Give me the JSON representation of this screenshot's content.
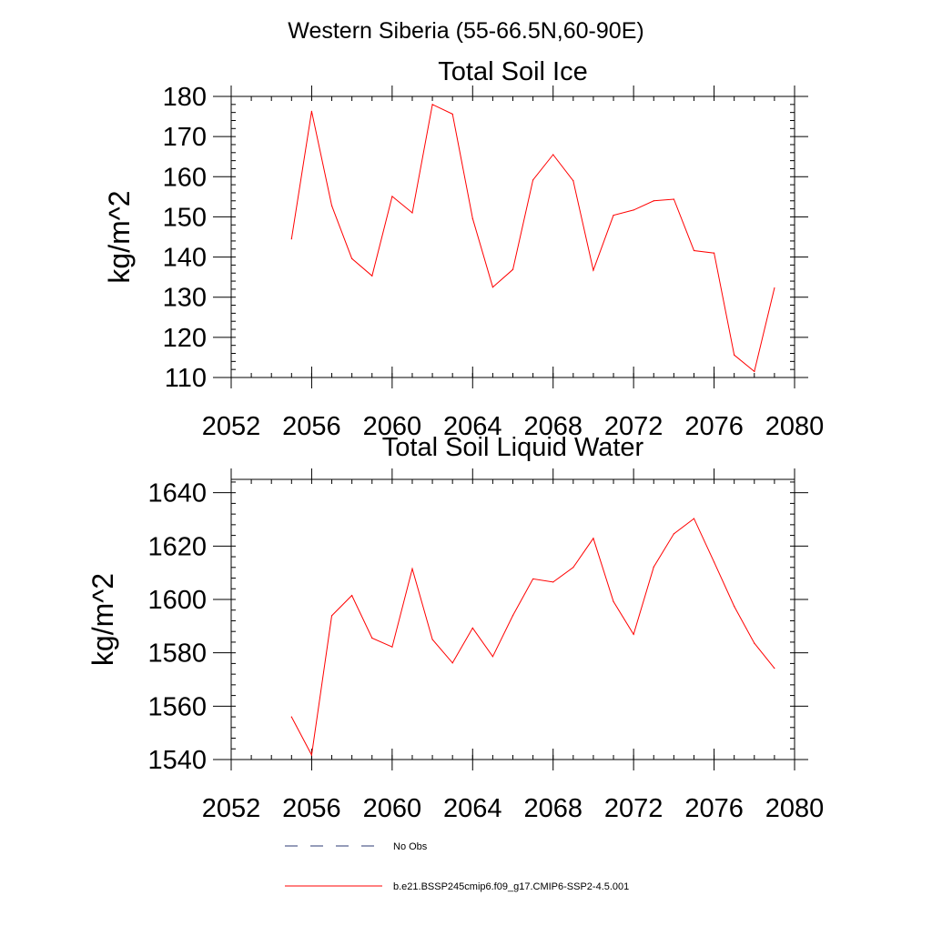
{
  "page_title": "Western Siberia (55-66.5N,60-90E)",
  "legend": {
    "entries": [
      {
        "label": "No Obs",
        "style": "dashed",
        "color": "#2b3a73"
      },
      {
        "label": "b.e21.BSSP245cmip6.f09_g17.CMIP6-SSP2-4.5.001",
        "style": "solid",
        "color": "#ff0000"
      }
    ]
  },
  "chart_data": [
    {
      "type": "line",
      "title": "Total Soil Ice",
      "xlabel": "",
      "ylabel": "kg/m^2",
      "xlim": [
        2052,
        2080
      ],
      "ylim": [
        110,
        180
      ],
      "x_ticks": [
        2052,
        2056,
        2060,
        2064,
        2068,
        2072,
        2076,
        2080
      ],
      "y_ticks": [
        110,
        120,
        130,
        140,
        150,
        160,
        170,
        180
      ],
      "x_minor_step": 1,
      "y_minor_step": 2,
      "grid": false,
      "series": [
        {
          "color": "#ff0000",
          "x": [
            2055,
            2056,
            2057,
            2058,
            2059,
            2060,
            2061,
            2062,
            2063,
            2064,
            2065,
            2066,
            2067,
            2068,
            2069,
            2070,
            2071,
            2072,
            2073,
            2074,
            2075,
            2076,
            2077,
            2078,
            2079
          ],
          "y": [
            144.5,
            176.3,
            152.8,
            139.6,
            135.3,
            155.1,
            151.0,
            178.0,
            175.6,
            149.6,
            132.5,
            136.9,
            159.2,
            165.5,
            159.0,
            136.7,
            150.4,
            151.7,
            154.0,
            154.4,
            141.6,
            141.0,
            115.6,
            111.5,
            132.3
          ]
        }
      ]
    },
    {
      "type": "line",
      "title": "Total Soil Liquid Water",
      "xlabel": "",
      "ylabel": "kg/m^2",
      "xlim": [
        2052,
        2080
      ],
      "ylim": [
        1540,
        1645
      ],
      "x_ticks": [
        2052,
        2056,
        2060,
        2064,
        2068,
        2072,
        2076,
        2080
      ],
      "y_ticks": [
        1540,
        1560,
        1580,
        1600,
        1620,
        1640
      ],
      "x_minor_step": 1,
      "y_minor_step": 4,
      "grid": false,
      "series": [
        {
          "color": "#ff0000",
          "x": [
            2055,
            2056,
            2057,
            2058,
            2059,
            2060,
            2061,
            2062,
            2063,
            2064,
            2065,
            2066,
            2067,
            2068,
            2069,
            2070,
            2071,
            2072,
            2073,
            2074,
            2075,
            2076,
            2077,
            2078,
            2079
          ],
          "y": [
            1556,
            1541.7,
            1593.9,
            1601.5,
            1585.5,
            1582.2,
            1611.5,
            1585.0,
            1576.2,
            1589.3,
            1578.6,
            1594.0,
            1607.7,
            1606.5,
            1612.0,
            1622.9,
            1599.2,
            1586.9,
            1612.2,
            1624.6,
            1630.3,
            1614.0,
            1597.4,
            1583.6,
            1574.2
          ]
        }
      ]
    }
  ]
}
